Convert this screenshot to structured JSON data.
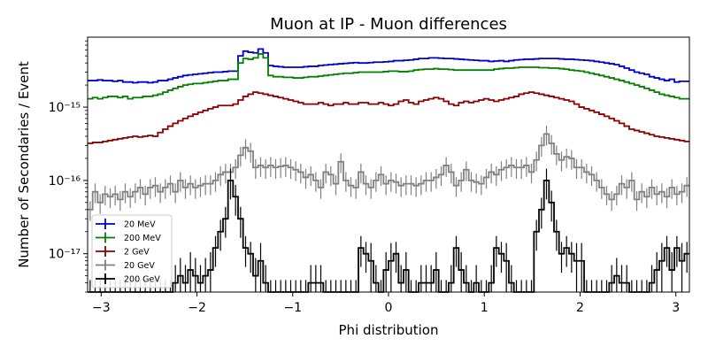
{
  "chart_data": {
    "type": "histogram-step",
    "title": "Muon at IP - Muon differences",
    "xlabel": "Phi distribution",
    "ylabel": "Number of Secondaries / Event",
    "xlim": [
      -3.1416,
      3.1416
    ],
    "ylim": [
      3e-18,
      9e-15
    ],
    "yscale": "log",
    "grid": false,
    "legend_placement": "lower-left",
    "xticks": [
      -3,
      -2,
      -1,
      0,
      1,
      2,
      3
    ],
    "xtick_labels": [
      "−3",
      "−2",
      "−1",
      "0",
      "1",
      "2",
      "3"
    ],
    "yticks": [
      1e-17,
      1e-16,
      1e-15
    ],
    "ytick_labels": [
      "10⁻¹⁷",
      "10⁻¹⁶",
      "10⁻¹⁵"
    ],
    "series": [
      {
        "name": "20 MeV",
        "color": "#0000cc",
        "values": [
          2.3e-15,
          2.3e-15,
          2.35e-15,
          2.3e-15,
          2.3e-15,
          2.25e-15,
          2.3e-15,
          2.2e-15,
          2.2e-15,
          2.15e-15,
          2.2e-15,
          2.2e-15,
          2.15e-15,
          2.2e-15,
          2.3e-15,
          2.3e-15,
          2.4e-15,
          2.5e-15,
          2.6e-15,
          2.7e-15,
          2.75e-15,
          2.8e-15,
          2.85e-15,
          2.9e-15,
          2.95e-15,
          3e-15,
          3e-15,
          3.05e-15,
          3.1e-15,
          3.1e-15,
          5e-15,
          5.8e-15,
          5.6e-15,
          5.5e-15,
          6.2e-15,
          5.5e-15,
          3.7e-15,
          3.6e-15,
          3.55e-15,
          3.5e-15,
          3.5e-15,
          3.5e-15,
          3.5e-15,
          3.55e-15,
          3.6e-15,
          3.6e-15,
          3.7e-15,
          3.75e-15,
          3.8e-15,
          3.85e-15,
          3.9e-15,
          3.95e-15,
          4e-15,
          4.05e-15,
          4e-15,
          4e-15,
          4.05e-15,
          4.1e-15,
          4.1e-15,
          4.15e-15,
          4.2e-15,
          4.3e-15,
          4.3e-15,
          4.35e-15,
          4.4e-15,
          4.5e-15,
          4.6e-15,
          4.6e-15,
          4.7e-15,
          4.7e-15,
          4.65e-15,
          4.6e-15,
          4.6e-15,
          4.55e-15,
          4.5e-15,
          4.45e-15,
          4.4e-15,
          4.35e-15,
          4.3e-15,
          4.3e-15,
          4.2e-15,
          4.25e-15,
          4.3e-15,
          4.2e-15,
          4.3e-15,
          4.4e-15,
          4.45e-15,
          4.5e-15,
          4.5e-15,
          4.55e-15,
          4.6e-15,
          4.6e-15,
          4.6e-15,
          4.6e-15,
          4.55e-15,
          4.5e-15,
          4.5e-15,
          4.45e-15,
          4.4e-15,
          4.35e-15,
          4.3e-15,
          4.2e-15,
          4.1e-15,
          4e-15,
          3.9e-15,
          3.8e-15,
          3.6e-15,
          3.4e-15,
          3.2e-15,
          3e-15,
          2.9e-15,
          2.8e-15,
          2.6e-15,
          2.5e-15,
          2.4e-15,
          2.3e-15,
          2.4e-15,
          2.2e-15,
          2.25e-15,
          2.25e-15
        ]
      },
      {
        "name": "200 MeV",
        "color": "#008000",
        "values": [
          1.3e-15,
          1.35e-15,
          1.3e-15,
          1.35e-15,
          1.4e-15,
          1.4e-15,
          1.35e-15,
          1.4e-15,
          1.3e-15,
          1.35e-15,
          1.35e-15,
          1.4e-15,
          1.4e-15,
          1.45e-15,
          1.5e-15,
          1.6e-15,
          1.7e-15,
          1.8e-15,
          1.9e-15,
          2e-15,
          2.05e-15,
          2.1e-15,
          2.1e-15,
          2.15e-15,
          2.2e-15,
          2.25e-15,
          2.3e-15,
          2.3e-15,
          2.4e-15,
          2.4e-15,
          4e-15,
          4.6e-15,
          4.5e-15,
          4.7e-15,
          5.3e-15,
          4.7e-15,
          2.7e-15,
          2.6e-15,
          2.6e-15,
          2.55e-15,
          2.55e-15,
          2.5e-15,
          2.5e-15,
          2.55e-15,
          2.6e-15,
          2.6e-15,
          2.65e-15,
          2.7e-15,
          2.75e-15,
          2.8e-15,
          2.85e-15,
          2.9e-15,
          2.9e-15,
          2.95e-15,
          3e-15,
          3e-15,
          3e-15,
          3e-15,
          3e-15,
          3.05e-15,
          3.1e-15,
          3.1e-15,
          3.05e-15,
          3.05e-15,
          3.1e-15,
          3.2e-15,
          3.25e-15,
          3.3e-15,
          3.3e-15,
          3.35e-15,
          3.3e-15,
          3.3e-15,
          3.25e-15,
          3.2e-15,
          3.2e-15,
          3.2e-15,
          3.2e-15,
          3.2e-15,
          3.2e-15,
          3.2e-15,
          3.2e-15,
          3.3e-15,
          3.35e-15,
          3.4e-15,
          3.4e-15,
          3.45e-15,
          3.5e-15,
          3.5e-15,
          3.5e-15,
          3.5e-15,
          3.45e-15,
          3.45e-15,
          3.4e-15,
          3.4e-15,
          3.35e-15,
          3.3e-15,
          3.2e-15,
          3.15e-15,
          3.1e-15,
          3e-15,
          2.9e-15,
          2.8e-15,
          2.7e-15,
          2.6e-15,
          2.5e-15,
          2.4e-15,
          2.3e-15,
          2.2e-15,
          2.1e-15,
          2e-15,
          1.9e-15,
          1.8e-15,
          1.7e-15,
          1.6e-15,
          1.5e-15,
          1.45e-15,
          1.4e-15,
          1.35e-15,
          1.3e-15,
          1.3e-15
        ]
      },
      {
        "name": "2 GeV",
        "color": "#8b0000",
        "values": [
          3.2e-16,
          3.3e-16,
          3.3e-16,
          3.4e-16,
          3.5e-16,
          3.6e-16,
          3.7e-16,
          3.8e-16,
          3.9e-16,
          4e-16,
          3.9e-16,
          4e-16,
          4.1e-16,
          4e-16,
          4.5e-16,
          5e-16,
          5.5e-16,
          6e-16,
          6.5e-16,
          7e-16,
          7.5e-16,
          8e-16,
          8.5e-16,
          9e-16,
          9.5e-16,
          1e-15,
          1.05e-15,
          1.05e-15,
          1.05e-15,
          1.1e-15,
          1.25e-15,
          1.4e-15,
          1.5e-15,
          1.6e-15,
          1.55e-15,
          1.5e-15,
          1.45e-15,
          1.4e-15,
          1.35e-15,
          1.3e-15,
          1.25e-15,
          1.2e-15,
          1.15e-15,
          1.1e-15,
          1.1e-15,
          1.1e-15,
          1.15e-15,
          1.1e-15,
          1.05e-15,
          1.1e-15,
          1.1e-15,
          1.15e-15,
          1.1e-15,
          1.1e-15,
          1.15e-15,
          1.15e-15,
          1.1e-15,
          1.1e-15,
          1.15e-15,
          1.1e-15,
          1.05e-15,
          1.1e-15,
          1.2e-15,
          1.25e-15,
          1.15e-15,
          1.1e-15,
          1.2e-15,
          1.25e-15,
          1.3e-15,
          1.35e-15,
          1.3e-15,
          1.2e-15,
          1.1e-15,
          1.05e-15,
          1.15e-15,
          1.2e-15,
          1.15e-15,
          1.2e-15,
          1.25e-15,
          1.3e-15,
          1.25e-15,
          1.2e-15,
          1.25e-15,
          1.3e-15,
          1.35e-15,
          1.4e-15,
          1.5e-15,
          1.55e-15,
          1.6e-15,
          1.55e-15,
          1.5e-15,
          1.45e-15,
          1.4e-15,
          1.35e-15,
          1.3e-15,
          1.25e-15,
          1.2e-15,
          1.1e-15,
          1e-15,
          9.5e-16,
          9e-16,
          8.5e-16,
          8e-16,
          7.5e-16,
          7e-16,
          6.5e-16,
          6e-16,
          5.5e-16,
          5e-16,
          4.8e-16,
          4.6e-16,
          4.4e-16,
          4.2e-16,
          4e-16,
          3.9e-16,
          3.8e-16,
          3.7e-16,
          3.6e-16,
          3.5e-16,
          3.4e-16
        ]
      },
      {
        "name": "20 GeV",
        "color": "#808080",
        "values": [
          4e-17,
          7e-17,
          5e-17,
          6.5e-17,
          6e-17,
          6.5e-17,
          5.5e-17,
          7e-17,
          6e-17,
          7e-17,
          8e-17,
          6.5e-17,
          8e-17,
          8.5e-17,
          7e-17,
          8e-17,
          9e-17,
          7e-17,
          1e-16,
          8e-17,
          9e-17,
          8e-17,
          8.5e-17,
          9e-17,
          9e-17,
          1e-16,
          1.2e-16,
          1.3e-16,
          1.3e-16,
          1.5e-16,
          2.2e-16,
          2.8e-16,
          2.5e-16,
          1.5e-16,
          1.6e-16,
          1.5e-16,
          1.6e-16,
          1.5e-16,
          1.55e-16,
          1.6e-16,
          1.5e-16,
          1.4e-16,
          1.3e-16,
          1.1e-16,
          1.2e-16,
          1e-16,
          8e-17,
          1.3e-16,
          1.2e-16,
          9e-17,
          1.8e-16,
          1e-16,
          8.5e-17,
          8e-17,
          1.3e-16,
          9e-17,
          8e-17,
          1e-16,
          1.2e-16,
          9e-17,
          1e-16,
          9.5e-17,
          8.5e-17,
          9e-17,
          9e-17,
          8.5e-17,
          9e-17,
          1e-16,
          1e-16,
          1.1e-16,
          1.2e-16,
          1.6e-16,
          1.3e-16,
          8.5e-17,
          1e-16,
          1.4e-16,
          1e-16,
          9.5e-17,
          9e-17,
          1.1e-16,
          1.3e-16,
          1.2e-16,
          1.4e-16,
          1.5e-16,
          1.6e-16,
          1.5e-16,
          1.5e-16,
          1.6e-16,
          1.3e-16,
          1.9e-16,
          3e-16,
          4.3e-16,
          3.2e-16,
          2.3e-16,
          1.9e-16,
          2.1e-16,
          2e-16,
          1.5e-16,
          1.5e-16,
          1.3e-16,
          1.2e-16,
          1e-16,
          8e-17,
          6.5e-17,
          5.5e-17,
          6.5e-17,
          9e-17,
          8e-17,
          1e-16,
          5.5e-17,
          7e-17,
          6e-17,
          8e-17,
          6.5e-17,
          7e-17,
          6e-17,
          8e-17,
          6.5e-17,
          7e-17,
          8.5e-17
        ]
      },
      {
        "name": "200 GeV",
        "color": "#000000",
        "values": [
          2.5e-18,
          2.5e-18,
          2.5e-18,
          2.5e-18,
          2.5e-18,
          2.5e-18,
          2.5e-18,
          2.5e-18,
          2.5e-18,
          2.5e-18,
          2.5e-18,
          2.5e-18,
          2.5e-18,
          2.5e-18,
          2.5e-18,
          2.5e-18,
          2.5e-18,
          4e-18,
          5e-18,
          4e-18,
          6e-18,
          5e-18,
          4e-18,
          5e-18,
          6e-18,
          1.2e-17,
          2e-17,
          3e-17,
          1e-16,
          6e-17,
          3e-17,
          1.2e-17,
          1e-17,
          5e-18,
          8e-18,
          4e-18,
          2.5e-18,
          2.5e-18,
          2.5e-18,
          2.5e-18,
          2.5e-18,
          2.5e-18,
          2.5e-18,
          2.5e-18,
          4e-18,
          4e-18,
          4e-18,
          2.5e-18,
          2.5e-18,
          2.5e-18,
          2.5e-18,
          2.5e-18,
          2.5e-18,
          2.5e-18,
          1.2e-17,
          1e-17,
          8e-18,
          4e-18,
          2.5e-18,
          6e-18,
          8e-18,
          1e-17,
          4e-18,
          6e-18,
          2.5e-18,
          2.5e-18,
          4e-18,
          4e-18,
          4e-18,
          6e-18,
          2.5e-18,
          2.5e-18,
          4e-18,
          1.2e-17,
          6e-18,
          4e-18,
          2.5e-18,
          4e-18,
          2.5e-18,
          2.5e-18,
          4e-18,
          1.2e-17,
          1e-17,
          8e-18,
          4e-18,
          2.5e-18,
          2.5e-18,
          2.5e-18,
          2.5e-18,
          2e-17,
          4e-17,
          1e-16,
          5e-17,
          2e-17,
          1e-17,
          1.2e-17,
          1e-17,
          8e-18,
          8e-18,
          2.5e-18,
          2.5e-18,
          2.5e-18,
          2.5e-18,
          2.5e-18,
          4e-18,
          5e-18,
          4e-18,
          4e-18,
          2.5e-18,
          2.5e-18,
          2.5e-18,
          2.5e-18,
          4e-18,
          6e-18,
          8e-18,
          1.2e-17,
          6e-18,
          1.2e-17,
          8e-18,
          1e-17
        ]
      }
    ]
  }
}
